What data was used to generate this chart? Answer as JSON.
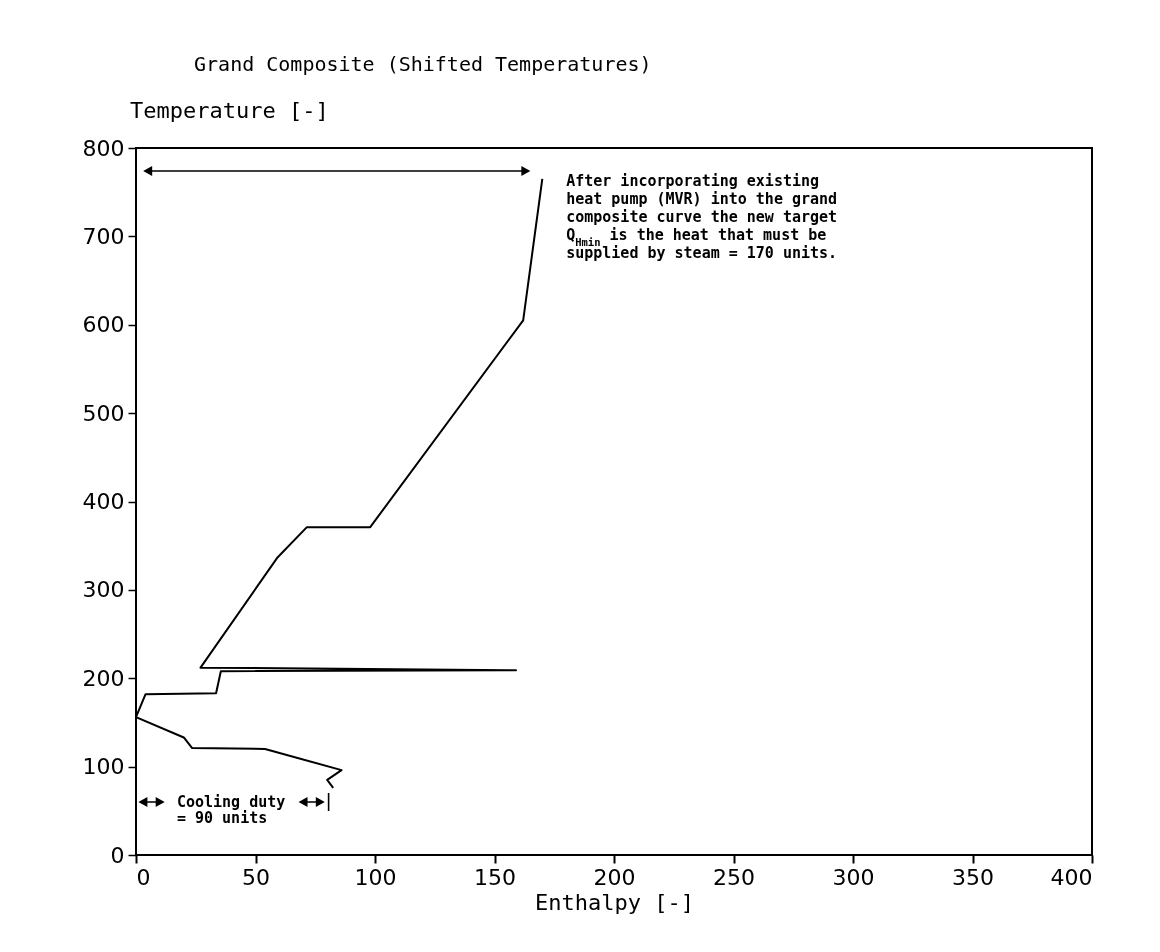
{
  "chart_data": {
    "type": "line",
    "title": "Grand Composite (Shifted Temperatures)",
    "xlabel": "Enthalpy [-]",
    "ylabel": "Temperature [-]",
    "x": [
      170,
      162,
      98,
      71.5,
      59,
      27,
      159,
      35.5,
      33.5,
      4,
      0,
      20,
      23.5,
      54,
      86,
      80,
      82.5
    ],
    "series": [
      {
        "color": "#000000",
        "values": [
          765,
          605,
          371,
          371,
          336,
          212,
          209,
          208,
          183,
          182,
          156,
          133,
          121,
          120,
          96,
          85,
          76
        ]
      }
    ],
    "xlim": [
      0,
      400
    ],
    "ylim": [
      0,
      800
    ],
    "xticks": [
      0,
      50,
      100,
      150,
      200,
      250,
      300,
      350,
      400
    ],
    "yticks": [
      0,
      100,
      200,
      300,
      400,
      500,
      600,
      700,
      800
    ],
    "grid": false,
    "legend": false,
    "marker": "none",
    "line_style": "solid",
    "annotations": [
      "After incorporating existing\nheat pump (MVR) into the grand\ncomposite curve the new target\nQ$_{Hmin}$ is the heat that must be\nsupplied by steam = 170 units.",
      "Cooling duty\n= 90 units"
    ]
  }
}
